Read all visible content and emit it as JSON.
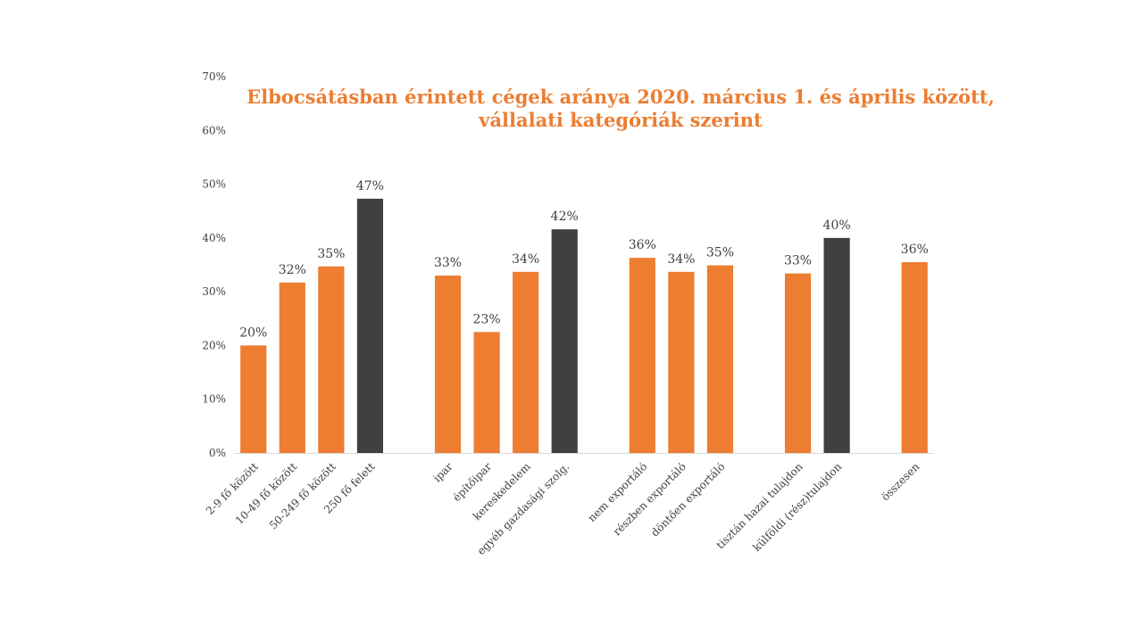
{
  "chart_data": {
    "type": "bar",
    "title_lines": [
      "Elbocsátásban érintett cégek aránya 2020. március 1. és április között,",
      "vállalati kategóriák szerint"
    ],
    "xlabel": "",
    "ylabel": "",
    "ylim": [
      0,
      70
    ],
    "y_ticks": [
      "0%",
      "10%",
      "20%",
      "30%",
      "40%",
      "50%",
      "60%",
      "70%"
    ],
    "grid": false,
    "colors": {
      "highlight": "#404040",
      "default": "#ED7D31",
      "title": "#ED7D31"
    },
    "groups": [
      {
        "bars": [
          {
            "category": "2-9 fő között",
            "value": 20,
            "label": "20%",
            "highlight": false
          },
          {
            "category": "10-49 fő között",
            "value": 31.7,
            "label": "32%",
            "highlight": false
          },
          {
            "category": "50-249 fő között",
            "value": 34.7,
            "label": "35%",
            "highlight": false
          },
          {
            "category": "250 fő felett",
            "value": 47.3,
            "label": "47%",
            "highlight": true
          }
        ]
      },
      {
        "bars": [
          {
            "category": "ipar",
            "value": 33,
            "label": "33%",
            "highlight": false
          },
          {
            "category": "építőipar",
            "value": 22.5,
            "label": "23%",
            "highlight": false
          },
          {
            "category": "kereskedelem",
            "value": 33.7,
            "label": "34%",
            "highlight": false
          },
          {
            "category": "egyéb gazdasági szolg.",
            "value": 41.6,
            "label": "42%",
            "highlight": true
          }
        ]
      },
      {
        "bars": [
          {
            "category": "nem exportáló",
            "value": 36.3,
            "label": "36%",
            "highlight": false
          },
          {
            "category": "részben exportáló",
            "value": 33.7,
            "label": "34%",
            "highlight": false
          },
          {
            "category": "döntően exportáló",
            "value": 34.9,
            "label": "35%",
            "highlight": false
          }
        ]
      },
      {
        "bars": [
          {
            "category": "tisztán hazai tulajdon",
            "value": 33.4,
            "label": "33%",
            "highlight": false
          },
          {
            "category": "külföldi (rész)tulajdon",
            "value": 40,
            "label": "40%",
            "highlight": true
          }
        ]
      },
      {
        "bars": [
          {
            "category": "összesen",
            "value": 35.5,
            "label": "36%",
            "highlight": false
          }
        ]
      }
    ]
  }
}
